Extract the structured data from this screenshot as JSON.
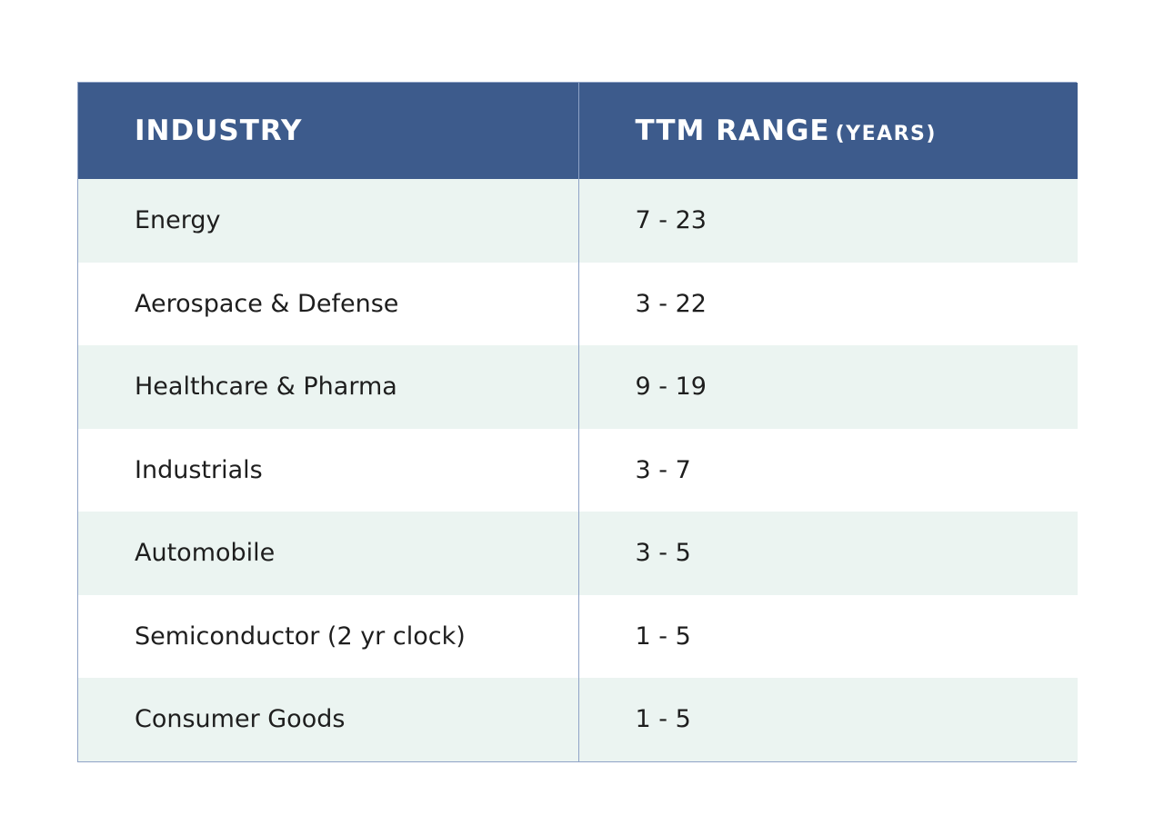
{
  "chart_data": {
    "type": "table",
    "columns": [
      {
        "label": "INDUSTRY",
        "unit": ""
      },
      {
        "label": "TTM RANGE",
        "unit": "(YEARS)"
      }
    ],
    "rows": [
      {
        "industry": "Energy",
        "range": "7 - 23",
        "min": 7,
        "max": 23
      },
      {
        "industry": "Aerospace & Defense",
        "range": "3 - 22",
        "min": 3,
        "max": 22
      },
      {
        "industry": "Healthcare & Pharma",
        "range": "9 - 19",
        "min": 9,
        "max": 19
      },
      {
        "industry": "Industrials",
        "range": "3 - 7",
        "min": 3,
        "max": 7
      },
      {
        "industry": "Automobile",
        "range": "3 - 5",
        "min": 3,
        "max": 5
      },
      {
        "industry": "Semiconductor (2 yr clock)",
        "range": "1 - 5",
        "min": 1,
        "max": 5
      },
      {
        "industry": "Consumer Goods",
        "range": "1 - 5",
        "min": 1,
        "max": 5
      }
    ]
  },
  "colors": {
    "header_background": "#3d5b8c",
    "header_text": "#ffffff",
    "row_shaded": "#ebf4f1",
    "row_plain": "#ffffff",
    "border": "#8fa3c6"
  }
}
